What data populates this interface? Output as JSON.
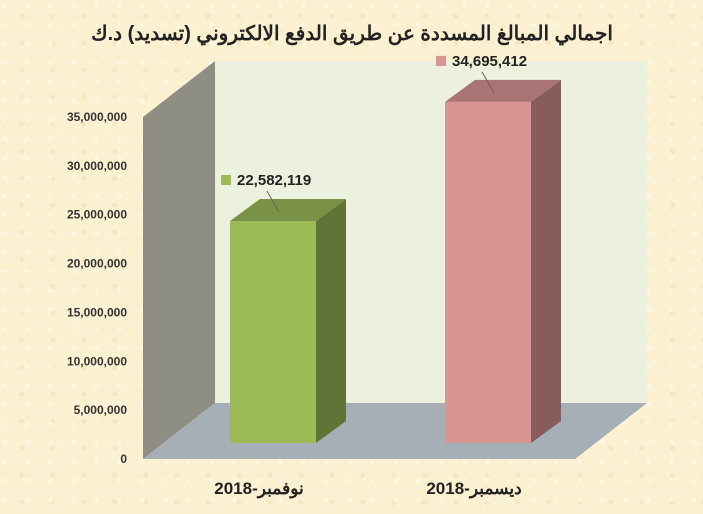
{
  "chart_data": {
    "type": "bar",
    "title": "اجمالي المبالغ المسددة عن طريق الدفع الالكتروني (تسديد) د.ك",
    "categories": [
      "نوفمبر-2018",
      "ديسمبر-2018"
    ],
    "values": [
      22582119,
      34695412
    ],
    "data_labels": [
      "22,582,119",
      "34,695,412"
    ],
    "bar_colors": [
      "#9bbb59",
      "#d99594"
    ],
    "ylim": [
      0,
      35000000
    ],
    "yticks": [
      0,
      5000000,
      10000000,
      15000000,
      20000000,
      25000000,
      30000000,
      35000000
    ],
    "ytick_labels": [
      "0",
      "5,000,000",
      "10,000,000",
      "15,000,000",
      "20,000,000",
      "25,000,000",
      "30,000,000",
      "35,000,000"
    ],
    "grid": false,
    "three_d": true
  },
  "colors": {
    "background": "#fbf0d0",
    "back_wall": "#ebf1de",
    "side_wall": "#8e8e84",
    "floor": "#a6aeb6"
  }
}
